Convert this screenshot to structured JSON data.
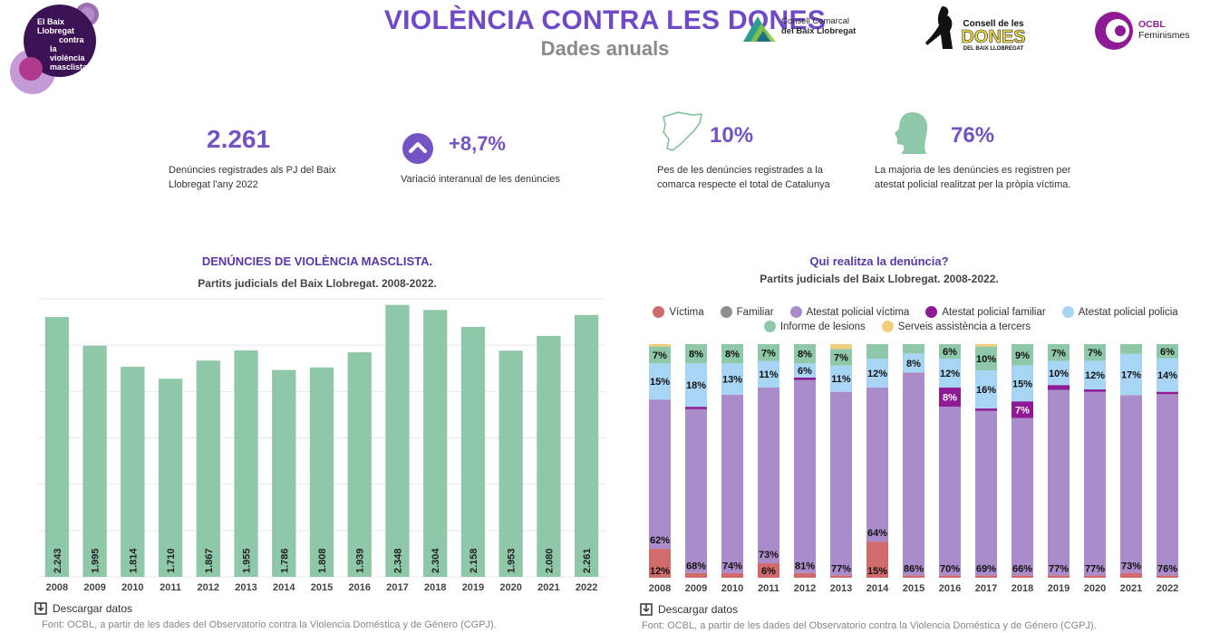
{
  "header": {
    "title": "VIOLÈNCIA CONTRA LES DONES",
    "subtitle": "Dades anuals",
    "logo_main": [
      "El Baix",
      "Llobregat",
      "contra",
      "la violència",
      "masclista"
    ],
    "partner1": [
      "Consell Comarcal",
      "del Baix Llobregat"
    ],
    "partner2": [
      "Consell de les",
      "DONES",
      "DEL BAIX LLOBREGAT"
    ],
    "partner3": [
      "OCBL",
      "Feminismes"
    ]
  },
  "kpis": [
    {
      "value": "2.261",
      "label": "Denúncies registrades als PJ del Baix Llobregat l'any 2022"
    },
    {
      "value": "+8,7%",
      "label": "Variació interanual de les denúncies"
    },
    {
      "value": "10%",
      "label": "Pes de les denúncies registrades a la comarca respecte el total de Catalunya"
    },
    {
      "value": "76%",
      "label": "La majoria de les denúncies es registren per atestat policial realitzat per la pròpia víctima."
    }
  ],
  "chart1": {
    "title": "DENÚNCIES DE VIOLÈNCIA MASCLISTA.",
    "subtitle": "Partits judicials del Baix Llobregat. 2008-2022.",
    "download": "Descargar datos",
    "source": "Font: OCBL, a partir de les dades del Observatorio contra la Violencia Doméstica y de Género (CGPJ)."
  },
  "chart2": {
    "title": "Qui realitza la denúncia?",
    "subtitle": "Partits judicials del Baix Llobregat. 2008-2022.",
    "download": "Descargar datos",
    "source": "Font: OCBL, a partir de les dades del Observatorio contra la Violencia Doméstica y de Género (CGPJ)."
  },
  "colors": {
    "bar": "#8fc7a9",
    "victima": "#d16b6b",
    "familiar": "#8f8f8f",
    "atestat_victima": "#ab8cca",
    "atestat_familiar": "#8e1a96",
    "atestat_policia": "#a9d5f5",
    "informe_lesions": "#8fc7a9",
    "serveis": "#f0cf7a"
  },
  "chart_data": [
    {
      "type": "bar",
      "categories": [
        "2008",
        "2009",
        "2010",
        "2011",
        "2012",
        "2013",
        "2014",
        "2015",
        "2016",
        "2017",
        "2018",
        "2019",
        "2020",
        "2021",
        "2022"
      ],
      "values": [
        2243,
        1995,
        1814,
        1710,
        1867,
        1955,
        1786,
        1808,
        1939,
        2348,
        2304,
        2158,
        1953,
        2080,
        2261
      ],
      "labels": [
        "2.243",
        "1.995",
        "1.814",
        "1.710",
        "1.867",
        "1.955",
        "1.786",
        "1.808",
        "1.939",
        "2.348",
        "2.304",
        "2.158",
        "1.953",
        "2.080",
        "2.261"
      ],
      "ylim": [
        0,
        2400
      ],
      "grid": true
    },
    {
      "type": "bar",
      "stacked": true,
      "categories": [
        "2008",
        "2009",
        "2010",
        "2011",
        "2012",
        "2013",
        "2014",
        "2015",
        "2016",
        "2017",
        "2018",
        "2019",
        "2020",
        "2021",
        "2022"
      ],
      "series": [
        {
          "name": "Víctima",
          "color_key": "victima",
          "values": [
            12,
            2,
            2,
            6,
            2,
            1,
            15,
            1,
            1,
            1,
            1,
            1,
            1,
            2,
            1
          ],
          "labels": [
            "12%",
            "",
            "",
            "6%",
            "",
            "",
            "15%",
            "",
            "",
            "",
            "",
            "",
            "",
            "",
            ""
          ]
        },
        {
          "name": "Familiar",
          "color_key": "familiar",
          "values": [
            0,
            0,
            0,
            0,
            0,
            0,
            0,
            0,
            0,
            0,
            0,
            0,
            0,
            0,
            0
          ],
          "labels": [
            "",
            "",
            "",
            "",
            "",
            "",
            "",
            "",
            "",
            "",
            "",
            "",
            "",
            "",
            ""
          ]
        },
        {
          "name": "Atestat policial víctima",
          "color_key": "atestat_victima",
          "values": [
            62,
            68,
            74,
            73,
            81,
            77,
            64,
            86,
            70,
            69,
            66,
            77,
            77,
            73,
            76
          ],
          "labels": [
            "62%",
            "68%",
            "74%",
            "73%",
            "81%",
            "77%",
            "64%",
            "86%",
            "70%",
            "69%",
            "66%",
            "77%",
            "77%",
            "73%",
            "76%"
          ]
        },
        {
          "name": "Atestat policial familiar",
          "color_key": "atestat_familiar",
          "values": [
            0,
            1,
            0,
            0,
            1,
            0,
            0,
            0,
            8,
            1,
            7,
            2,
            1,
            0,
            1
          ],
          "labels": [
            "",
            "",
            "",
            "",
            "",
            "",
            "",
            "",
            "8%",
            "",
            "7%",
            "",
            "",
            "",
            ""
          ]
        },
        {
          "name": "Atestat policial policia",
          "color_key": "atestat_policia",
          "values": [
            15,
            18,
            13,
            11,
            6,
            11,
            12,
            8,
            12,
            16,
            15,
            10,
            12,
            17,
            14
          ],
          "labels": [
            "15%",
            "18%",
            "13%",
            "11%",
            "6%",
            "11%",
            "12%",
            "8%",
            "12%",
            "16%",
            "15%",
            "10%",
            "12%",
            "17%",
            "14%"
          ]
        },
        {
          "name": "Informe de lesions",
          "color_key": "informe_lesions",
          "values": [
            7,
            8,
            8,
            7,
            8,
            7,
            6,
            4,
            6,
            10,
            9,
            7,
            7,
            4,
            6
          ],
          "labels": [
            "7%",
            "8%",
            "8%",
            "7%",
            "8%",
            "7%",
            "",
            "",
            "6%",
            "10%",
            "9%",
            "7%",
            "7%",
            "",
            "6%"
          ]
        },
        {
          "name": "Serveis assistència a tercers",
          "color_key": "serveis",
          "values": [
            1,
            0,
            0,
            0,
            0,
            2,
            0,
            0,
            0,
            1,
            0,
            0,
            0,
            0,
            0
          ],
          "labels": [
            "",
            "",
            "",
            "",
            "",
            "",
            "",
            "",
            "",
            "",
            "",
            "",
            "",
            "",
            ""
          ]
        }
      ],
      "ylim": [
        0,
        100
      ]
    }
  ]
}
